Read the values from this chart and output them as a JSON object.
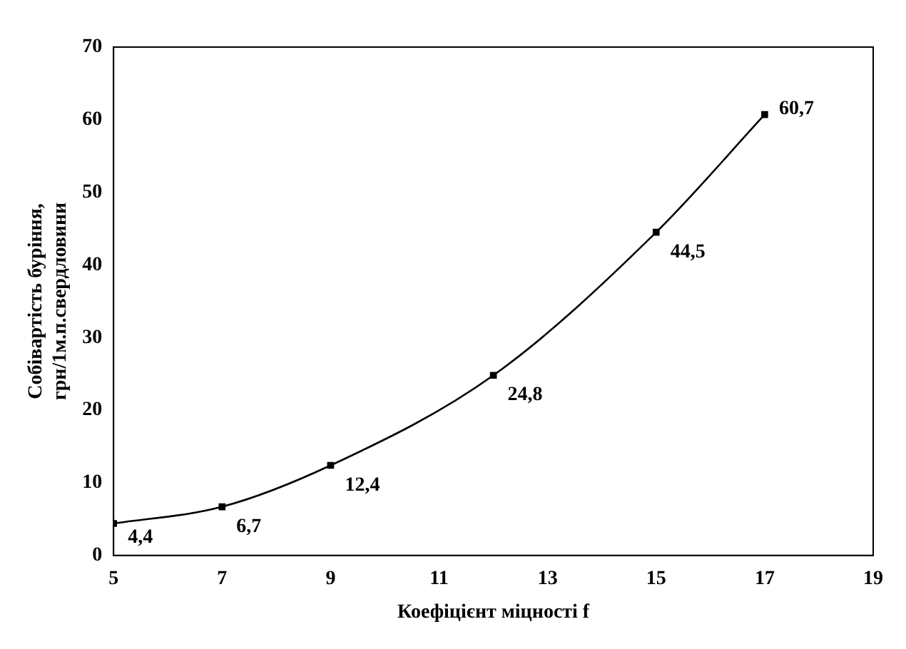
{
  "chart_data": {
    "type": "line",
    "xlabel": "Коефіцієнт міцності f",
    "ylabel": "Собівартість буріння, грн/1м.п.свердловини",
    "x": [
      5,
      7,
      9,
      12,
      15,
      17
    ],
    "values": [
      4.4,
      6.7,
      12.4,
      24.8,
      44.5,
      60.7
    ],
    "value_labels": [
      "4,4",
      "6,7",
      "12,4",
      "24,8",
      "44,5",
      "60,7"
    ],
    "color": "#000000",
    "marker": "square",
    "line_style": "solid",
    "grid": false,
    "legend": false,
    "xlim": [
      5,
      19
    ],
    "xticks": [
      5,
      7,
      9,
      11,
      13,
      15,
      17,
      19
    ],
    "ylim": [
      0,
      70
    ],
    "yticks": [
      0,
      10,
      20,
      30,
      40,
      50,
      60,
      70
    ]
  }
}
